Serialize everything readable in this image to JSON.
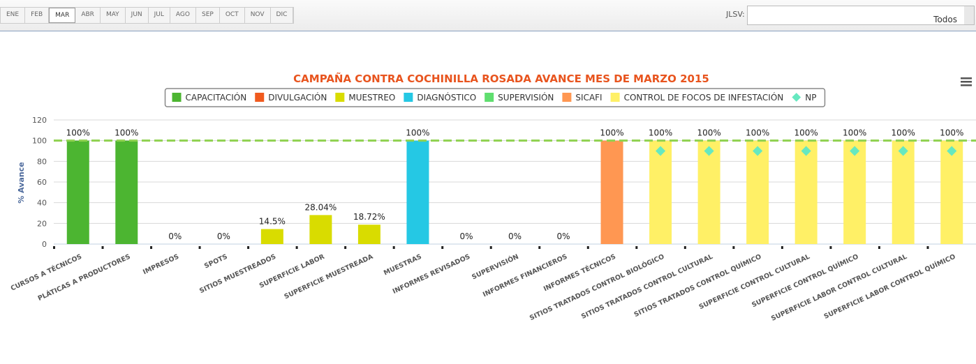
{
  "months": [
    "ENE",
    "FEB",
    "MAR",
    "ABR",
    "MAY",
    "JUN",
    "JUL",
    "AGO",
    "SEP",
    "OCT",
    "NOV",
    "DIC"
  ],
  "selected_month": "MAR",
  "filter": {
    "label": "JLSV:",
    "value": "Todos"
  },
  "chart_data": {
    "type": "bar",
    "title": "CAMPAÑA CONTRA COCHINILLA ROSADA AVANCE MES DE MARZO 2015",
    "ylabel": "% Avance",
    "ylim": [
      0,
      120
    ],
    "yticks": [
      0,
      20,
      40,
      60,
      80,
      100,
      120
    ],
    "grid": true,
    "legend": "top",
    "plot_line": {
      "value": 100,
      "color": "#8fd14f"
    },
    "categories": [
      "CURSOS A TÉCNICOS",
      "PLÁTICAS A PRODUCTORES",
      "IMPRESOS",
      "SPOTS",
      "SITIOS MUESTREADOS",
      "SUPERFICIE LABOR",
      "SUPERFICIE MUESTREADA",
      "MUESTRAS",
      "INFORMES REVISADOS",
      "SUPERVISIÓN",
      "INFORMES FINANCIEROS",
      "INFORMES TÉCNICOS",
      "SITIOS TRATADOS CONTROL BIOLÓGICO",
      "SITIOS TRATADOS CONTROL CULTURAL",
      "SITIOS TRATADOS CONTROL QUÍMICO",
      "SUPERFICIE CONTROL CULTURAL",
      "SUPERFICIE CONTROL QUÍMICO",
      "SUPERFICIE LABOR CONTROL CULTURAL",
      "SUPERFICIE LABOR CONTROL QUÍMICO"
    ],
    "series": [
      {
        "name": "CAPACITACIÓN",
        "color": "#4cb531",
        "values": [
          100,
          100,
          null,
          null,
          null,
          null,
          null,
          null,
          null,
          null,
          null,
          null,
          null,
          null,
          null,
          null,
          null,
          null,
          null
        ],
        "value_labels": [
          "100%",
          "100%",
          null,
          null,
          null,
          null,
          null,
          null,
          null,
          null,
          null,
          null,
          null,
          null,
          null,
          null,
          null,
          null,
          null
        ]
      },
      {
        "name": "DIVULGACIÓN",
        "color": "#f05a1e",
        "values": [
          null,
          null,
          0,
          0,
          null,
          null,
          null,
          null,
          null,
          null,
          null,
          null,
          null,
          null,
          null,
          null,
          null,
          null,
          null
        ],
        "value_labels": [
          null,
          null,
          "0%",
          "0%",
          null,
          null,
          null,
          null,
          null,
          null,
          null,
          null,
          null,
          null,
          null,
          null,
          null,
          null,
          null
        ]
      },
      {
        "name": "MUESTREO",
        "color": "#d9dc00",
        "values": [
          null,
          null,
          null,
          null,
          14.5,
          28.04,
          18.72,
          null,
          null,
          null,
          null,
          null,
          null,
          null,
          null,
          null,
          null,
          null,
          null
        ],
        "value_labels": [
          null,
          null,
          null,
          null,
          "14.5%",
          "28.04%",
          "18.72%",
          null,
          null,
          null,
          null,
          null,
          null,
          null,
          null,
          null,
          null,
          null,
          null
        ]
      },
      {
        "name": "DIAGNÓSTICO",
        "color": "#25c8e4",
        "values": [
          null,
          null,
          null,
          null,
          null,
          null,
          null,
          100,
          null,
          null,
          null,
          null,
          null,
          null,
          null,
          null,
          null,
          null,
          null
        ],
        "value_labels": [
          null,
          null,
          null,
          null,
          null,
          null,
          null,
          "100%",
          null,
          null,
          null,
          null,
          null,
          null,
          null,
          null,
          null,
          null,
          null
        ]
      },
      {
        "name": "SUPERVISIÓN",
        "color": "#5fde6f",
        "values": [
          null,
          null,
          null,
          null,
          null,
          null,
          null,
          null,
          0,
          0,
          0,
          null,
          null,
          null,
          null,
          null,
          null,
          null,
          null
        ],
        "value_labels": [
          null,
          null,
          null,
          null,
          null,
          null,
          null,
          null,
          "0%",
          "0%",
          "0%",
          null,
          null,
          null,
          null,
          null,
          null,
          null,
          null
        ]
      },
      {
        "name": "SICAFI",
        "color": "#ff9752",
        "values": [
          null,
          null,
          null,
          null,
          null,
          null,
          null,
          null,
          null,
          null,
          null,
          100,
          null,
          null,
          null,
          null,
          null,
          null,
          null
        ],
        "value_labels": [
          null,
          null,
          null,
          null,
          null,
          null,
          null,
          null,
          null,
          null,
          null,
          "100%",
          null,
          null,
          null,
          null,
          null,
          null,
          null
        ]
      },
      {
        "name": "CONTROL DE FOCOS DE INFESTACIÓN",
        "color": "#fff066",
        "values": [
          null,
          null,
          null,
          null,
          null,
          null,
          null,
          null,
          null,
          null,
          null,
          null,
          100,
          100,
          100,
          100,
          100,
          100,
          100
        ],
        "value_labels": [
          null,
          null,
          null,
          null,
          null,
          null,
          null,
          null,
          null,
          null,
          null,
          null,
          "100%",
          "100%",
          "100%",
          "100%",
          "100%",
          "100%",
          "100%"
        ]
      },
      {
        "name": "NP",
        "type": "scatter",
        "color": "#66e8c0",
        "values": [
          null,
          null,
          null,
          null,
          null,
          null,
          null,
          null,
          null,
          null,
          null,
          null,
          90,
          90,
          90,
          90,
          90,
          90,
          90
        ]
      }
    ]
  }
}
